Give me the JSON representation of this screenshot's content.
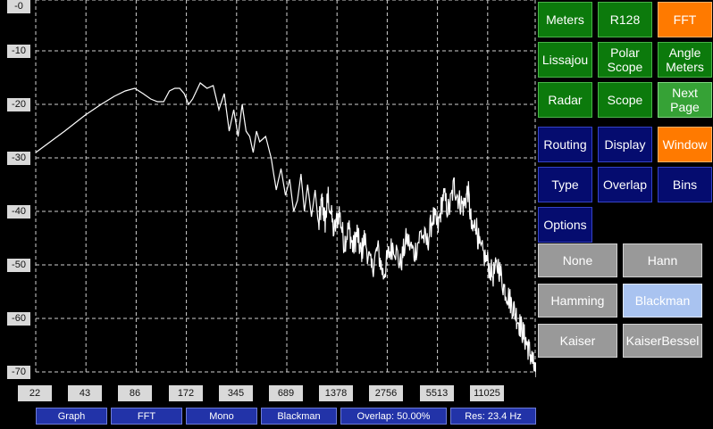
{
  "chart_data": {
    "type": "line",
    "x_scale": "log",
    "x_ticks": [
      "22",
      "43",
      "86",
      "172",
      "345",
      "689",
      "1378",
      "2756",
      "5513",
      "11025"
    ],
    "y_ticks": [
      "-0",
      "-10",
      "-20",
      "-30",
      "-40",
      "-50",
      "-60",
      "-70"
    ],
    "ylim": [
      -70,
      0
    ],
    "xlim": [
      20,
      22050
    ],
    "grid": true,
    "series": [
      {
        "color": "#ffffff",
        "x": [
          20,
          30,
          40,
          50,
          60,
          70,
          80,
          90,
          100,
          110,
          120,
          130,
          140,
          150,
          160,
          170,
          180,
          200,
          220,
          240,
          260,
          280,
          300,
          320,
          340,
          360,
          380,
          400,
          420,
          440,
          460,
          500,
          540,
          580,
          620,
          660,
          700,
          740,
          780,
          820,
          860,
          900,
          950,
          1000,
          1050,
          1100,
          1150,
          1200,
          1300,
          1400,
          1500,
          1600,
          1700,
          1800,
          1900,
          2000,
          2200,
          2400,
          2600,
          2800,
          3000,
          3300,
          3600,
          4000,
          4400,
          4800,
          5200,
          5600,
          6000,
          6500,
          7000,
          7500,
          8000,
          8500,
          9000,
          9500,
          10000,
          11000,
          12000,
          13000,
          14000,
          15000,
          16000,
          17000,
          18000,
          19000,
          20000,
          21000,
          22050
        ],
        "y": [
          -29,
          -25,
          -22,
          -20,
          -18.5,
          -17.5,
          -17,
          -18,
          -19,
          -19.5,
          -19.5,
          -17.5,
          -17,
          -17,
          -18,
          -20,
          -19,
          -16,
          -17,
          -16.5,
          -21,
          -18,
          -25,
          -21,
          -26,
          -20,
          -25,
          -26,
          -29,
          -25,
          -27,
          -26,
          -30,
          -36,
          -32,
          -37,
          -34,
          -40,
          -38,
          -33,
          -40,
          -35,
          -41,
          -36,
          -43,
          -38,
          -42,
          -37,
          -44,
          -40,
          -46,
          -43,
          -47,
          -44,
          -48,
          -45,
          -51,
          -47,
          -52,
          -48,
          -46,
          -50,
          -45,
          -48,
          -44,
          -46,
          -41,
          -43,
          -37,
          -40,
          -35,
          -38,
          -39,
          -36,
          -44,
          -42,
          -47,
          -49,
          -52,
          -50,
          -54,
          -56,
          -58,
          -60,
          -62,
          -64,
          -66,
          -68,
          -71
        ]
      }
    ]
  },
  "status_bar": {
    "graph": "Graph",
    "fft": "FFT",
    "mono": "Mono",
    "window": "Blackman",
    "overlap": "Overlap: 50.00%",
    "res": "Res: 23.4 Hz"
  },
  "menu": {
    "meters": "Meters",
    "r128": "R128",
    "fft": "FFT",
    "lissajou": "Lissajou",
    "polar_scope": "Polar\nScope",
    "angle_meters": "Angle\nMeters",
    "radar": "Radar",
    "scope": "Scope",
    "next_page": "Next\nPage",
    "routing": "Routing",
    "display": "Display",
    "window": "Window",
    "type": "Type",
    "overlap": "Overlap",
    "bins": "Bins",
    "options": "Options"
  },
  "windows": {
    "none": "None",
    "hann": "Hann",
    "hamming": "Hamming",
    "blackman": "Blackman",
    "kaiser": "Kaiser",
    "kaiser_bessel": "KaiserBessel"
  }
}
